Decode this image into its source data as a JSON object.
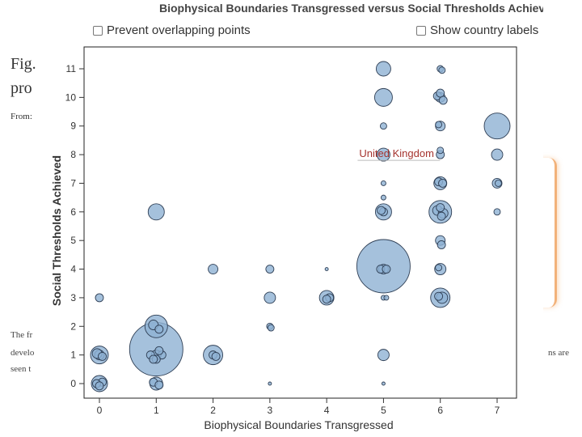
{
  "background": {
    "fig_text": "Fig.",
    "pro_text": "pro",
    "from_text": "From:",
    "line1": "The fr",
    "line2": "develo",
    "line3": "seen t",
    "right_fragment": "ns are"
  },
  "controls": {
    "prevent_overlap_label": "Prevent overlapping points",
    "show_labels_label": "Show country labels"
  },
  "colors": {
    "bubble_fill": "#8fb1d3",
    "bubble_stroke": "#2f3f55",
    "highlight_label": "#a5332e",
    "accent_orange": "#f2b27a"
  },
  "chart_data": {
    "type": "scatter",
    "title": "Biophysical Boundaries Transgressed versus Social Thresholds Achieved",
    "xlabel": "Biophysical Boundaries Transgressed",
    "ylabel": "Social Thresholds Achieved",
    "xlim": [
      0,
      7
    ],
    "ylim": [
      0,
      11
    ],
    "xticks": [
      "0",
      "1",
      "2",
      "3",
      "4",
      "5",
      "6",
      "7"
    ],
    "yticks": [
      "0",
      "1",
      "2",
      "3",
      "4",
      "5",
      "6",
      "7",
      "8",
      "9",
      "10",
      "11"
    ],
    "grid": false,
    "highlight": {
      "label": "United Kingdom",
      "x": 5,
      "y": 8
    },
    "points": [
      {
        "x": 0,
        "y": 3,
        "r": 5
      },
      {
        "x": 0,
        "y": 1,
        "r": 11
      },
      {
        "x": 0,
        "y": 1,
        "r": 6
      },
      {
        "x": -0.04,
        "y": 1.05,
        "r": 6
      },
      {
        "x": 0.05,
        "y": 0.95,
        "r": 5
      },
      {
        "x": 0,
        "y": 0,
        "r": 10
      },
      {
        "x": 0.05,
        "y": 0.05,
        "r": 5
      },
      {
        "x": -0.05,
        "y": 0,
        "r": 5
      },
      {
        "x": 0,
        "y": -0.08,
        "r": 5
      },
      {
        "x": 1,
        "y": 1.2,
        "r": 33
      },
      {
        "x": 1,
        "y": 2,
        "r": 14
      },
      {
        "x": 0.95,
        "y": 2.05,
        "r": 6
      },
      {
        "x": 1.05,
        "y": 1.9,
        "r": 5
      },
      {
        "x": 1,
        "y": 6,
        "r": 10
      },
      {
        "x": 1,
        "y": 0,
        "r": 8
      },
      {
        "x": 0.95,
        "y": 0.05,
        "r": 5
      },
      {
        "x": 1.05,
        "y": -0.05,
        "r": 5
      },
      {
        "x": 1,
        "y": 1,
        "r": 6
      },
      {
        "x": 0.9,
        "y": 1,
        "r": 5
      },
      {
        "x": 1.1,
        "y": 1,
        "r": 5
      },
      {
        "x": 1,
        "y": 0.85,
        "r": 5
      },
      {
        "x": 1.05,
        "y": 1.15,
        "r": 5
      },
      {
        "x": 0.95,
        "y": 0.85,
        "r": 5
      },
      {
        "x": 2,
        "y": 4,
        "r": 6
      },
      {
        "x": 2,
        "y": 1,
        "r": 12
      },
      {
        "x": 2,
        "y": 1,
        "r": 5
      },
      {
        "x": 2.05,
        "y": 0.95,
        "r": 5
      },
      {
        "x": 3,
        "y": 4,
        "r": 5
      },
      {
        "x": 3,
        "y": 3,
        "r": 7
      },
      {
        "x": 3,
        "y": 2,
        "r": 4
      },
      {
        "x": 3.02,
        "y": 1.95,
        "r": 4
      },
      {
        "x": 3,
        "y": 0,
        "r": 2
      },
      {
        "x": 4,
        "y": 4,
        "r": 2
      },
      {
        "x": 4,
        "y": 3,
        "r": 9
      },
      {
        "x": 4.05,
        "y": 3,
        "r": 5
      },
      {
        "x": 4,
        "y": 2.95,
        "r": 5
      },
      {
        "x": 5,
        "y": 11,
        "r": 9
      },
      {
        "x": 5,
        "y": 10,
        "r": 11
      },
      {
        "x": 5,
        "y": 9,
        "r": 4
      },
      {
        "x": 5,
        "y": 8,
        "r": 8
      },
      {
        "x": 5,
        "y": 7,
        "r": 3
      },
      {
        "x": 5,
        "y": 6.5,
        "r": 3
      },
      {
        "x": 5,
        "y": 6,
        "r": 10
      },
      {
        "x": 5,
        "y": 6,
        "r": 5
      },
      {
        "x": 4.96,
        "y": 6.05,
        "r": 5
      },
      {
        "x": 5,
        "y": 4.1,
        "r": 33
      },
      {
        "x": 5,
        "y": 4,
        "r": 6
      },
      {
        "x": 4.95,
        "y": 4,
        "r": 5
      },
      {
        "x": 5.05,
        "y": 4,
        "r": 5
      },
      {
        "x": 5,
        "y": 3,
        "r": 3
      },
      {
        "x": 5.05,
        "y": 3,
        "r": 3
      },
      {
        "x": 5,
        "y": 1,
        "r": 7
      },
      {
        "x": 5,
        "y": 0,
        "r": 2
      },
      {
        "x": 6,
        "y": 11,
        "r": 4
      },
      {
        "x": 6.03,
        "y": 10.95,
        "r": 4
      },
      {
        "x": 6,
        "y": 10,
        "r": 6
      },
      {
        "x": 5.95,
        "y": 10.05,
        "r": 5
      },
      {
        "x": 6.05,
        "y": 9.9,
        "r": 5
      },
      {
        "x": 6,
        "y": 10.15,
        "r": 5
      },
      {
        "x": 6,
        "y": 9,
        "r": 6
      },
      {
        "x": 5.97,
        "y": 9.05,
        "r": 4
      },
      {
        "x": 6,
        "y": 8,
        "r": 5
      },
      {
        "x": 6,
        "y": 8.15,
        "r": 4
      },
      {
        "x": 6,
        "y": 7,
        "r": 8
      },
      {
        "x": 5.97,
        "y": 7.05,
        "r": 5
      },
      {
        "x": 6.04,
        "y": 7,
        "r": 5
      },
      {
        "x": 6,
        "y": 6,
        "r": 14
      },
      {
        "x": 5.95,
        "y": 6.05,
        "r": 6
      },
      {
        "x": 6.05,
        "y": 5.95,
        "r": 6
      },
      {
        "x": 6,
        "y": 6.15,
        "r": 5
      },
      {
        "x": 6.02,
        "y": 5.85,
        "r": 5
      },
      {
        "x": 6,
        "y": 5,
        "r": 6
      },
      {
        "x": 6.02,
        "y": 4.85,
        "r": 5
      },
      {
        "x": 6,
        "y": 4,
        "r": 7
      },
      {
        "x": 5.97,
        "y": 4.05,
        "r": 4
      },
      {
        "x": 6,
        "y": 3,
        "r": 12
      },
      {
        "x": 6.03,
        "y": 3,
        "r": 7
      },
      {
        "x": 5.97,
        "y": 3.05,
        "r": 5
      },
      {
        "x": 7,
        "y": 9,
        "r": 16
      },
      {
        "x": 7,
        "y": 8,
        "r": 7
      },
      {
        "x": 7,
        "y": 7,
        "r": 6
      },
      {
        "x": 7.02,
        "y": 7,
        "r": 4
      },
      {
        "x": 7,
        "y": 6,
        "r": 4
      }
    ]
  }
}
